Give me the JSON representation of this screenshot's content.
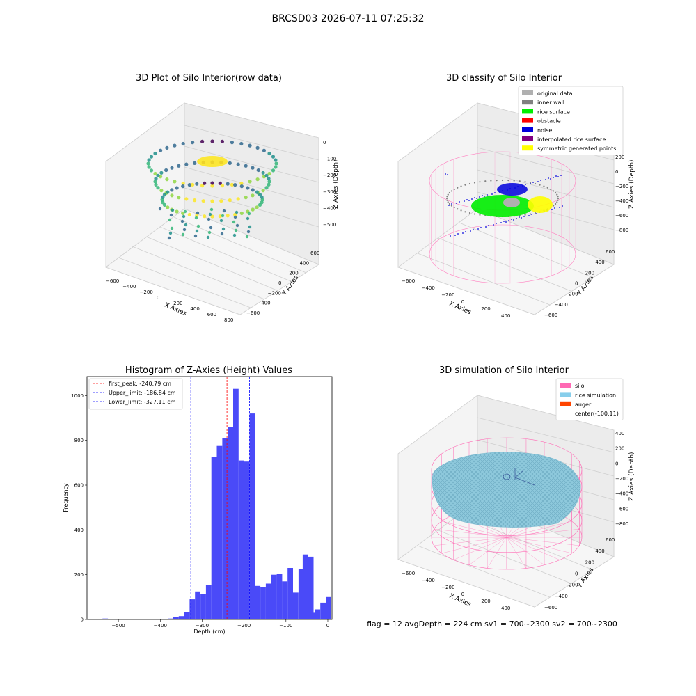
{
  "suptitle": "BRCSD03 2026-07-11 07:25:32",
  "footer": "flag = 12   avgDepth = 224 cm  sv1 = 700~2300  sv2 = 700~2300",
  "chart_data": [
    {
      "type": "scatter3d",
      "title": "3D Plot of Silo Interior(row data)",
      "xlabel": "X Axies",
      "ylabel": "Y Axies",
      "zlabel": "Z Axies (Depth)",
      "xticks": [
        "−600",
        "−400",
        "−200",
        "0",
        "200",
        "400",
        "600",
        "800"
      ],
      "yticks": [
        "−600",
        "−400",
        "−200",
        "0",
        "200",
        "400",
        "600"
      ],
      "zticks": [
        "0",
        "−100",
        "−200",
        "−300",
        "−400",
        "−500"
      ],
      "colormap": [
        "#440154",
        "#31688e",
        "#21918c",
        "#35b779",
        "#90d743",
        "#fde725"
      ]
    },
    {
      "type": "scatter3d",
      "title": "3D classify of Silo Interior",
      "xlabel": "X Axies",
      "ylabel": "Y Axies",
      "zlabel": "Z Axies (Depth)",
      "xticks": [
        "−600",
        "−400",
        "−200",
        "0",
        "200",
        "400"
      ],
      "yticks": [
        "−600",
        "−400",
        "−200",
        "0",
        "200",
        "400",
        "600"
      ],
      "zticks": [
        "200",
        "0",
        "−200",
        "−400",
        "−600",
        "−800"
      ],
      "legend_position": "top-right",
      "legend": [
        {
          "label": "original data",
          "color": "#b0b0b0"
        },
        {
          "label": "inner wall",
          "color": "#808080"
        },
        {
          "label": "rice surface",
          "color": "#00ee00"
        },
        {
          "label": "obstacle",
          "color": "#ff0000"
        },
        {
          "label": "noise",
          "color": "#0000dd"
        },
        {
          "label": "interpolated rice surface",
          "color": "#800080"
        },
        {
          "label": "symmetric generated points",
          "color": "#ffff00"
        }
      ],
      "wall_color": "#ff80c0"
    },
    {
      "type": "bar",
      "title": "Histogram of Z-Axies (Height) Values",
      "xlabel": "Depth (cm)",
      "ylabel": "Frequency",
      "xlim": [
        -575,
        10
      ],
      "ylim": [
        0,
        1085
      ],
      "xticks": [
        -500,
        -400,
        -300,
        -200,
        -100,
        0
      ],
      "yticks": [
        0,
        200,
        400,
        600,
        800,
        1000
      ],
      "bar_color": "#4a4af8",
      "bins": [
        {
          "x0": -538,
          "x1": -525,
          "value": 4
        },
        {
          "x0": -525,
          "x1": -512,
          "value": 2
        },
        {
          "x0": -512,
          "x1": -499,
          "value": 2
        },
        {
          "x0": -499,
          "x1": -486,
          "value": 2
        },
        {
          "x0": -486,
          "x1": -473,
          "value": 2
        },
        {
          "x0": -460,
          "x1": -447,
          "value": 3
        },
        {
          "x0": -421,
          "x1": -408,
          "value": 2
        },
        {
          "x0": -395,
          "x1": -382,
          "value": 2
        },
        {
          "x0": -382,
          "x1": -369,
          "value": 4
        },
        {
          "x0": -369,
          "x1": -356,
          "value": 10
        },
        {
          "x0": -356,
          "x1": -343,
          "value": 15
        },
        {
          "x0": -343,
          "x1": -330,
          "value": 32
        },
        {
          "x0": -330,
          "x1": -317,
          "value": 90
        },
        {
          "x0": -317,
          "x1": -304,
          "value": 125
        },
        {
          "x0": -304,
          "x1": -291,
          "value": 115
        },
        {
          "x0": -291,
          "x1": -278,
          "value": 155
        },
        {
          "x0": -278,
          "x1": -265,
          "value": 725
        },
        {
          "x0": -265,
          "x1": -252,
          "value": 775
        },
        {
          "x0": -252,
          "x1": -239,
          "value": 810
        },
        {
          "x0": -239,
          "x1": -226,
          "value": 860
        },
        {
          "x0": -226,
          "x1": -213,
          "value": 1030
        },
        {
          "x0": -213,
          "x1": -200,
          "value": 710
        },
        {
          "x0": -200,
          "x1": -187,
          "value": 705
        },
        {
          "x0": -187,
          "x1": -174,
          "value": 920
        },
        {
          "x0": -174,
          "x1": -161,
          "value": 150
        },
        {
          "x0": -161,
          "x1": -148,
          "value": 145
        },
        {
          "x0": -148,
          "x1": -135,
          "value": 160
        },
        {
          "x0": -135,
          "x1": -122,
          "value": 200
        },
        {
          "x0": -122,
          "x1": -109,
          "value": 205
        },
        {
          "x0": -109,
          "x1": -96,
          "value": 170
        },
        {
          "x0": -96,
          "x1": -83,
          "value": 230
        },
        {
          "x0": -83,
          "x1": -70,
          "value": 120
        },
        {
          "x0": -70,
          "x1": -57,
          "value": 225
        },
        {
          "x0": -57,
          "x1": -44,
          "value": 25
        },
        {
          "x0": -44,
          "x1": -31,
          "value": 30
        },
        {
          "x0": -31,
          "x1": -18,
          "value": 45
        },
        {
          "x0": -18,
          "x1": -5,
          "value": 75
        },
        {
          "x0": -5,
          "x1": 8,
          "value": 100
        }
      ],
      "extra_bins": [
        {
          "x0": -60,
          "x1": -47,
          "value": 290
        },
        {
          "x0": -47,
          "x1": -34,
          "value": 280
        }
      ],
      "vlines": [
        {
          "label": "first_peak: -240.79 cm",
          "x": -240.79,
          "color": "#ff0000"
        },
        {
          "label": "Upper_limit: -186.84 cm",
          "x": -186.84,
          "color": "#0000ff"
        },
        {
          "label": "Lower_limit: -327.11 cm",
          "x": -327.11,
          "color": "#0000ff"
        }
      ],
      "legend_position": "top-left"
    },
    {
      "type": "surface3d",
      "title": "3D simulation of Silo Interior",
      "xlabel": "X Axies",
      "ylabel": "Y Axies",
      "zlabel": "Z Axies (Depth)",
      "xticks": [
        "−600",
        "−400",
        "−200",
        "0",
        "200",
        "400"
      ],
      "yticks": [
        "−600",
        "−400",
        "−200",
        "0",
        "200",
        "400",
        "600"
      ],
      "zticks": [
        "400",
        "200",
        "0",
        "−200",
        "−400",
        "−600",
        "−800"
      ],
      "legend_position": "top-right",
      "legend": [
        {
          "label": "silo",
          "color": "#ff69b4"
        },
        {
          "label": "rice simulation",
          "color": "#87ceeb"
        },
        {
          "label": "auger",
          "color": "#ff4500"
        },
        {
          "label": "center(-100,11)",
          "color": ""
        }
      ]
    }
  ]
}
